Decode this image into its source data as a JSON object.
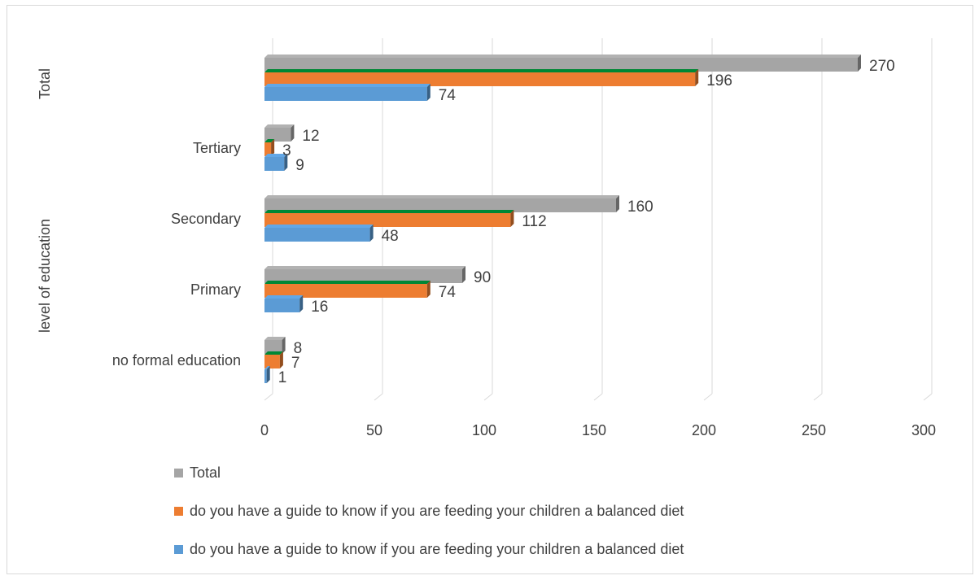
{
  "chart_data": {
    "type": "bar",
    "orientation": "horizontal",
    "style": "3d",
    "group_axis_label": "level of education",
    "top_group_label": "Total",
    "categories": [
      "no formal education",
      "Primary",
      "Secondary",
      "Tertiary",
      "Total"
    ],
    "series": [
      {
        "name": "Total",
        "color": "#a5a5a5",
        "values": [
          8,
          90,
          160,
          12,
          270
        ]
      },
      {
        "name": "do you have a guide to know if you are feeding your children a balanced diet",
        "color": "#ed7d31",
        "values": [
          7,
          74,
          112,
          3,
          196
        ]
      },
      {
        "name": "do you have a guide to know if you are feeding your children a balanced diet",
        "color": "#5b9bd5",
        "values": [
          1,
          16,
          48,
          9,
          74
        ]
      }
    ],
    "xlim": [
      0,
      300
    ],
    "xticks": [
      0,
      50,
      100,
      150,
      200,
      250,
      300
    ],
    "grid": true,
    "legend_position": "bottom"
  }
}
